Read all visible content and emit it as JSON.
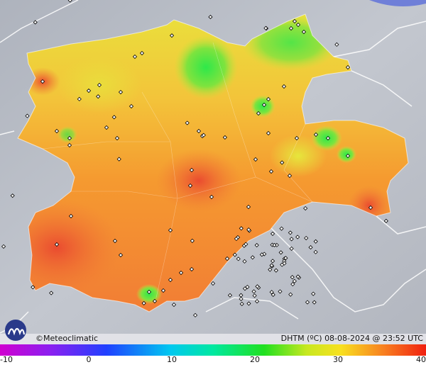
{
  "map": {
    "credit": "©Meteoclimatic",
    "caption": "DHTM (ºC) 08-08-2024 @ 23:52 UTC"
  },
  "legend": {
    "range": [
      -10,
      40
    ],
    "ticks": [
      -10,
      0,
      10,
      20,
      30,
      40
    ]
  }
}
